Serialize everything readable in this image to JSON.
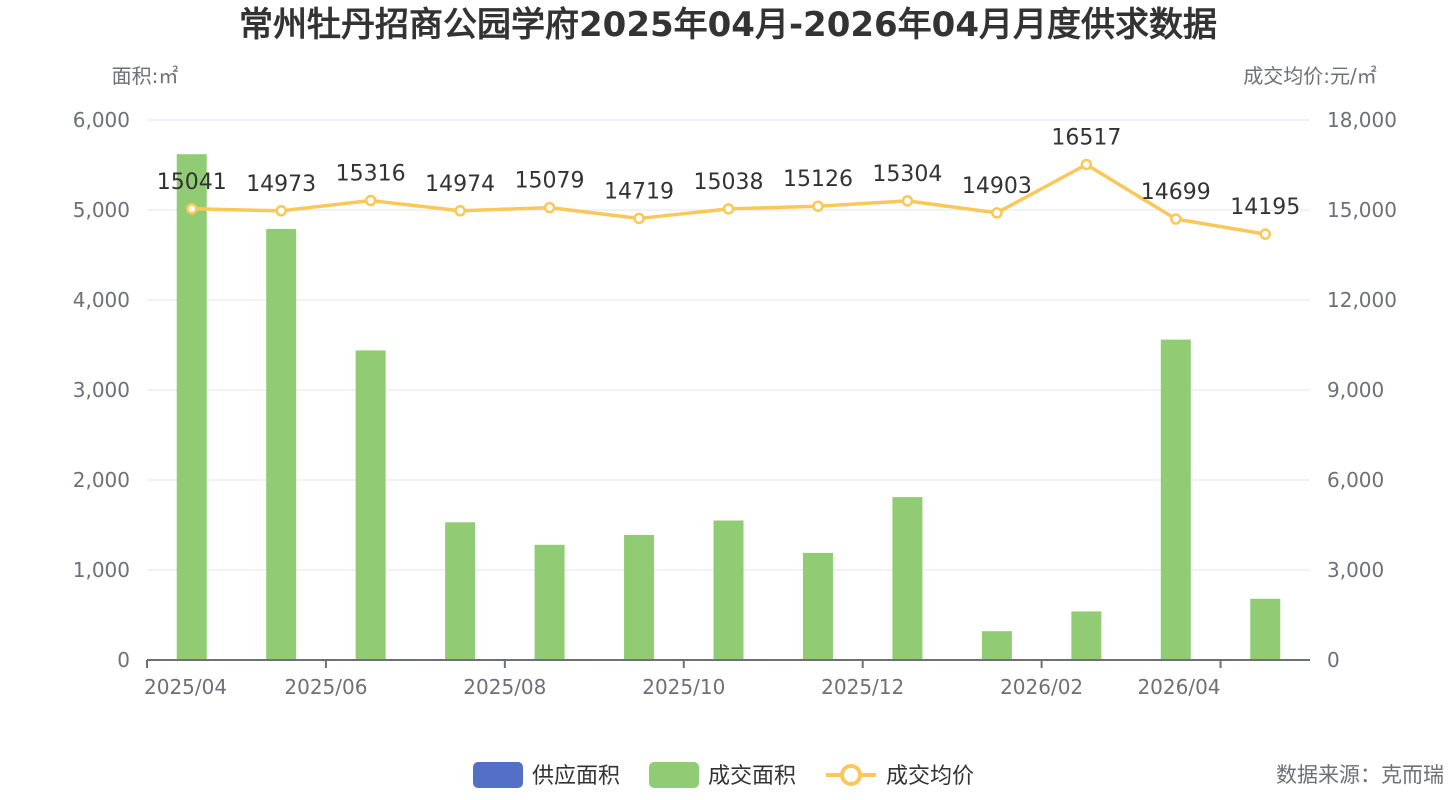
{
  "chart_data": {
    "type": "bar",
    "title": "常州牡丹招商公园学府2025年04月-2026年04月月度供求数据",
    "categories": [
      "2025/04",
      "2025/05",
      "2025/06",
      "2025/07",
      "2025/08",
      "2025/09",
      "2025/10",
      "2025/11",
      "2025/12",
      "2026/01",
      "2026/02",
      "2026/03",
      "2026/04"
    ],
    "x_tick_labels": [
      "2025/04",
      "2025/06",
      "2025/08",
      "2025/10",
      "2025/12",
      "2026/02",
      "2026/04"
    ],
    "y_left": {
      "label": "面积:㎡",
      "ylim": [
        0,
        6000
      ],
      "ticks": [
        "0",
        "1,000",
        "2,000",
        "3,000",
        "4,000",
        "5,000",
        "6,000"
      ]
    },
    "y_right": {
      "label": "成交均价:元/㎡",
      "ylim": [
        0,
        18000
      ],
      "ticks": [
        "0",
        "3,000",
        "6,000",
        "9,000",
        "12,000",
        "15,000",
        "18,000"
      ]
    },
    "series": [
      {
        "name": "供应面积",
        "type": "bar",
        "axis": "left",
        "color": "#5470c6",
        "values": [
          0,
          0,
          0,
          0,
          0,
          0,
          0,
          0,
          0,
          0,
          0,
          0,
          0
        ]
      },
      {
        "name": "成交面积",
        "type": "bar",
        "axis": "left",
        "color": "#91cc75",
        "values": [
          5620,
          4790,
          3440,
          1530,
          1280,
          1390,
          1550,
          1190,
          1810,
          320,
          540,
          3560,
          680
        ]
      },
      {
        "name": "成交均价",
        "type": "line",
        "axis": "right",
        "color": "#fac858",
        "values": [
          15041,
          14973,
          15316,
          14974,
          15079,
          14719,
          15038,
          15126,
          15304,
          14903,
          16517,
          14699,
          14195
        ]
      }
    ],
    "grid": true,
    "legend": "bottom-center",
    "source": "数据来源：克而瑞"
  }
}
